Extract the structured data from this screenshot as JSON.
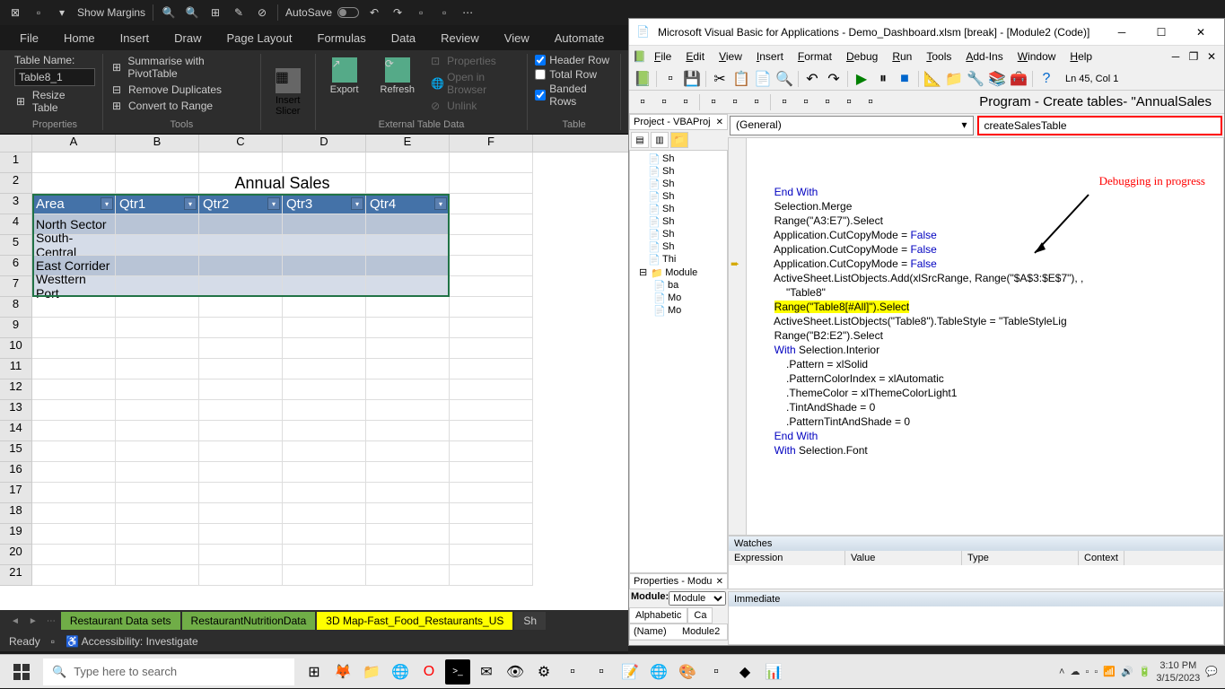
{
  "excel": {
    "qat": {
      "show_margins": "Show Margins",
      "autosave": "AutoSave"
    },
    "tabs": [
      "File",
      "Home",
      "Insert",
      "Draw",
      "Page Layout",
      "Formulas",
      "Data",
      "Review",
      "View",
      "Automate"
    ],
    "ribbon": {
      "table_name_label": "Table Name:",
      "table_name_value": "Table8_1",
      "resize_table": "Resize Table",
      "properties_label": "Properties",
      "summarise": "Summarise with PivotTable",
      "remove_dup": "Remove Duplicates",
      "convert_range": "Convert to Range",
      "tools_label": "Tools",
      "insert_slicer": "Insert\nSlicer",
      "export": "Export",
      "refresh": "Refresh",
      "props": "Properties",
      "open_browser": "Open in Browser",
      "unlink": "Unlink",
      "external_label": "External Table Data",
      "header_row": "Header Row",
      "total_row": "Total Row",
      "banded_rows": "Banded Rows",
      "table_style_label": "Table"
    },
    "columns": [
      "A",
      "B",
      "C",
      "D",
      "E",
      "F"
    ],
    "rows": [
      "1",
      "2",
      "3",
      "4",
      "5",
      "6",
      "7",
      "8",
      "9",
      "10",
      "11",
      "12",
      "13",
      "14",
      "15",
      "16",
      "17",
      "18",
      "19",
      "20",
      "21"
    ],
    "title": "Annual Sales",
    "table_headers": [
      "Area",
      "Qtr1",
      "Qtr2",
      "Qtr3",
      "Qtr4"
    ],
    "table_rows": [
      [
        "North Sector",
        "",
        "",
        "",
        ""
      ],
      [
        "South-Central",
        "",
        "",
        "",
        ""
      ],
      [
        "East Corrider",
        "",
        "",
        "",
        ""
      ],
      [
        "Westtern Port",
        "",
        "",
        "",
        ""
      ]
    ],
    "sheet_tabs": {
      "t1": "Restaurant Data sets",
      "t2": "RestaurantNutritionData",
      "t3": "3D Map-Fast_Food_Restaurants_US",
      "t4": "Sh"
    },
    "status": {
      "ready": "Ready",
      "accessibility": "Accessibility: Investigate"
    },
    "colors": {
      "table_header_bg": "#4472a8",
      "table_row_odd": "#b8c4d6",
      "table_row_even": "#d5dce8",
      "selection": "#217346"
    }
  },
  "vba": {
    "title": "Microsoft Visual Basic for Applications - Demo_Dashboard.xlsm [break] - [Module2 (Code)]",
    "menu": [
      "File",
      "Edit",
      "View",
      "Insert",
      "Format",
      "Debug",
      "Run",
      "Tools",
      "Add-Ins",
      "Window",
      "Help"
    ],
    "location": "Ln 45, Col 1",
    "program_title": "Program - Create tables- \"AnnualSales",
    "project_title": "Project - VBAProj",
    "combo_general": "(General)",
    "combo_proc": "createSalesTable",
    "tree_items": [
      "Sh",
      "Sh",
      "Sh",
      "Sh",
      "Sh",
      "Sh",
      "Sh",
      "Sh",
      "Thi"
    ],
    "tree_modules": "Module",
    "tree_mod_items": [
      "ba",
      "Mo",
      "Mo"
    ],
    "props_title": "Properties - Modu",
    "props_module_label": "Module:",
    "props_module_value": "Module",
    "props_tabs": [
      "Alphabetic",
      "Ca"
    ],
    "props_name_label": "(Name)",
    "props_name_value": "Module2",
    "code_lines": [
      {
        "indent": 8,
        "text": "End With",
        "kw": true
      },
      {
        "indent": 8,
        "text": "Selection.Merge"
      },
      {
        "indent": 8,
        "text": "Range(\"A3:E7\").Select"
      },
      {
        "indent": 8,
        "text": "Application.CutCopyMode = ",
        "tail": "False",
        "tail_kw": true
      },
      {
        "indent": 8,
        "text": "Application.CutCopyMode = ",
        "tail": "False",
        "tail_kw": true
      },
      {
        "indent": 8,
        "text": "Application.CutCopyMode = ",
        "tail": "False",
        "tail_kw": true
      },
      {
        "indent": 8,
        "text": "ActiveSheet.ListObjects.Add(xlSrcRange, Range(\"$A$3:$E$7\"), ,"
      },
      {
        "indent": 12,
        "text": "\"Table8\""
      },
      {
        "indent": 8,
        "text": "Range(\"Table8[#All]\").Select",
        "hl": true,
        "break": true
      },
      {
        "indent": 8,
        "text": "ActiveSheet.ListObjects(\"Table8\").TableStyle = \"TableStyleLig"
      },
      {
        "indent": 8,
        "text": "Range(\"B2:E2\").Select"
      },
      {
        "indent": 8,
        "pre": "With ",
        "pre_kw": true,
        "text": "Selection.Interior"
      },
      {
        "indent": 12,
        "text": ".Pattern = xlSolid"
      },
      {
        "indent": 12,
        "text": ".PatternColorIndex = xlAutomatic"
      },
      {
        "indent": 12,
        "text": ".ThemeColor = xlThemeColorLight1"
      },
      {
        "indent": 12,
        "text": ".TintAndShade = 0"
      },
      {
        "indent": 12,
        "text": ".PatternTintAndShade = 0"
      },
      {
        "indent": 8,
        "text": "End With",
        "kw": true
      },
      {
        "indent": 8,
        "pre": "With ",
        "pre_kw": true,
        "text": "Selection.Font"
      }
    ],
    "annotation": "Debugging in progress",
    "watches": {
      "title": "Watches",
      "cols": [
        "Expression",
        "Value",
        "Type",
        "Context"
      ]
    },
    "immediate": "Immediate"
  },
  "taskbar": {
    "search_placeholder": "Type here to search",
    "time": "3:10 PM",
    "date": "3/15/2023"
  }
}
